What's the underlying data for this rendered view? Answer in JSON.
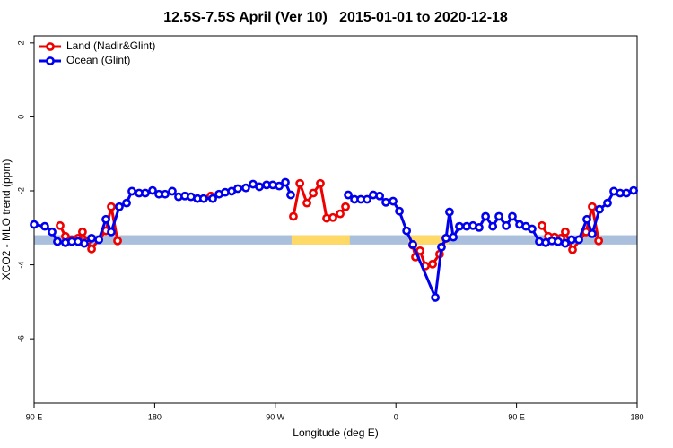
{
  "chart_data": {
    "type": "line",
    "title": "12.5S-7.5S April (Ver 10)   2015-01-01 to 2020-12-18",
    "x_label": "Longitude (deg E)",
    "y_label": "XCO2 - MLO trend (ppm)",
    "xlim": [
      90,
      540
    ],
    "xticks": [
      {
        "value": 90,
        "label": "90 E"
      },
      180,
      {
        "value": 270,
        "label": "90 W"
      },
      {
        "value": 360,
        "label": "0"
      },
      {
        "value": 450,
        "label": "90 E"
      },
      {
        "value": 540,
        "label": "180"
      }
    ],
    "ylim": [
      -7.74,
      2.19
    ],
    "yticks": [
      2,
      0,
      -2,
      -4,
      -6
    ],
    "legend": "top-left",
    "band": {
      "y": [
        -3.2,
        -3.45
      ],
      "color": "#a9bfdc",
      "land_color": "#ffd966",
      "land_x": [
        [
          282.1,
          325.6
        ],
        [
          369.3,
          399.4
        ]
      ]
    },
    "series": [
      {
        "name": "Land (Nadir&Glint)",
        "color": "#ee0000",
        "x": [
          109.4,
          113.4,
          118.1,
          122.8,
          126.1,
          129.5,
          132.9,
          143.6,
          147.6,
          152.3,
          null,
          221.9,
          null,
          283.5,
          288.3,
          293.6,
          298.3,
          303.6,
          308.3,
          313.0,
          318.4,
          322.4,
          null,
          372.6,
          374.6,
          378.0,
          382.0,
          387.4,
          392.6,
          397.4,
          null,
          469.0,
          473.8,
          478.4,
          483.1,
          486.4,
          491.8,
          501.9,
          506.5,
          511.3
        ],
        "values": [
          -2.94,
          -3.23,
          -3.32,
          -3.28,
          -3.11,
          -3.37,
          -3.57,
          -3.08,
          -2.43,
          -3.35,
          null,
          -2.14,
          null,
          -2.69,
          -1.8,
          -2.33,
          -2.06,
          -1.8,
          -2.74,
          -2.72,
          -2.62,
          -2.43,
          null,
          -3.47,
          -3.79,
          -3.62,
          -4.03,
          -3.98,
          -3.71,
          -3.28,
          null,
          -2.94,
          -3.23,
          -3.25,
          -3.28,
          -3.11,
          -3.59,
          -3.11,
          -2.43,
          -3.35
        ]
      },
      {
        "name": "Ocean (Glint)",
        "color": "#0000ee",
        "x": [
          90,
          98.0,
          103.4,
          107.4,
          113.4,
          118.1,
          122.8,
          127.5,
          132.9,
          138.3,
          143.6,
          147.6,
          153.6,
          159.0,
          163.0,
          168.4,
          173.0,
          178.4,
          183.1,
          187.8,
          193.1,
          197.8,
          202.5,
          207.1,
          211.9,
          216.5,
          223.3,
          228.0,
          232.6,
          237.4,
          242.0,
          248.0,
          253.4,
          258.1,
          263.5,
          268.1,
          272.9,
          277.5,
          281.5,
          null,
          324.4,
          329.1,
          333.8,
          338.5,
          343.1,
          347.9,
          352.5,
          357.9,
          362.6,
          368.0,
          372.6,
          389.4,
          394.0,
          397.4,
          400.0,
          402.8,
          407.4,
          412.8,
          417.5,
          422.1,
          426.9,
          432.3,
          436.9,
          442.3,
          446.9,
          452.3,
          457.0,
          461.6,
          467.0,
          471.8,
          476.4,
          481.1,
          486.4,
          491.1,
          496.5,
          502.5,
          506.5,
          511.9,
          517.9,
          522.6,
          527.3,
          532.0,
          537.4
        ],
        "values": [
          -2.91,
          -2.96,
          -3.11,
          -3.37,
          -3.4,
          -3.37,
          -3.37,
          -3.42,
          -3.28,
          -3.32,
          -2.77,
          -3.11,
          -2.43,
          -2.33,
          -2.01,
          -2.06,
          -2.06,
          -1.99,
          -2.09,
          -2.09,
          -2.01,
          -2.16,
          -2.14,
          -2.16,
          -2.21,
          -2.21,
          -2.21,
          -2.09,
          -2.04,
          -2.01,
          -1.94,
          -1.92,
          -1.82,
          -1.89,
          -1.84,
          -1.84,
          -1.87,
          -1.77,
          -2.11,
          null,
          -2.11,
          -2.23,
          -2.23,
          -2.23,
          -2.11,
          -2.14,
          -2.31,
          -2.28,
          -2.55,
          -3.08,
          -3.45,
          -4.88,
          -3.52,
          -3.28,
          -2.57,
          -3.25,
          -2.96,
          -2.96,
          -2.94,
          -2.99,
          -2.69,
          -2.96,
          -2.69,
          -2.94,
          -2.69,
          -2.91,
          -2.96,
          -3.03,
          -3.37,
          -3.4,
          -3.35,
          -3.37,
          -3.42,
          -3.32,
          -3.32,
          -2.77,
          -3.16,
          -2.5,
          -2.33,
          -2.01,
          -2.06,
          -2.06,
          -1.99
        ]
      }
    ]
  }
}
